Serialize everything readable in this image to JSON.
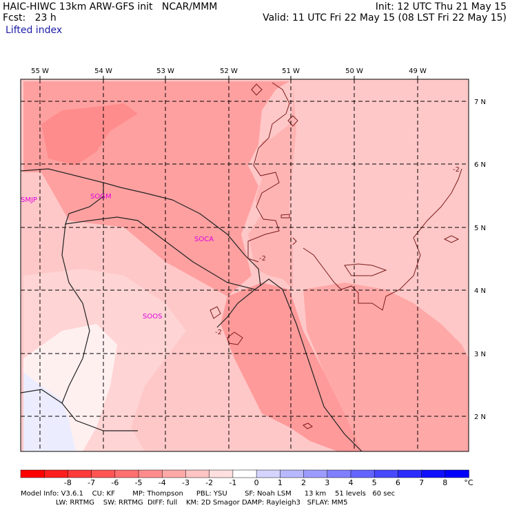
{
  "header": {
    "title_left": "HAIC-HIWC 13km ARW-GFS init   NCAR/MMM",
    "fcst": "Fcst:   23 h",
    "field": "Lifted index",
    "init": "Init: 12 UTC Thu 21 May 15",
    "valid": "Valid: 11 UTC Fri 22 May 15 (08 LST Fri 22 May 15)"
  },
  "map": {
    "lon_labels": [
      "55 W",
      "54 W",
      "53 W",
      "52 W",
      "51 W",
      "50 W",
      "49 W"
    ],
    "lat_labels": [
      "7 N",
      "6 N",
      "5 N",
      "4 N",
      "3 N",
      "2 N"
    ],
    "stations": [
      "SMJP",
      "SOGM",
      "SOCA",
      "SOOS"
    ],
    "contour_labels": [
      "-2",
      "-2",
      "-2"
    ]
  },
  "colorbar": {
    "labels": [
      "-8",
      "-7",
      "-6",
      "-5",
      "-4",
      "-3",
      "-2",
      "-1",
      "0",
      "1",
      "2",
      "3",
      "4",
      "5",
      "6",
      "7",
      "8"
    ],
    "unit": "°C",
    "colors": [
      "#ff0000",
      "#ff1f1f",
      "#ff3a3a",
      "#ff5555",
      "#ff7070",
      "#ff8c8c",
      "#ffa8a8",
      "#ffc4c4",
      "#ffe0e0",
      "#ffffff",
      "#d4d4ff",
      "#b8b8ff",
      "#9c9cff",
      "#8080ff",
      "#6464ff",
      "#4848ff",
      "#2c2cff",
      "#1010ff",
      "#0000ff"
    ]
  },
  "footer": {
    "line1": "Model Info: V3.6.1    CU: KF        MP: Thompson      PBL: YSU        SF: Noah LSM      13 km    51 levels   60 sec",
    "line2": "                LW: RRTMG    SW: RRTMG  DIFF: full    KM: 2D Smagor DAMP: Rayleigh3   SFLAY: MM5"
  }
}
